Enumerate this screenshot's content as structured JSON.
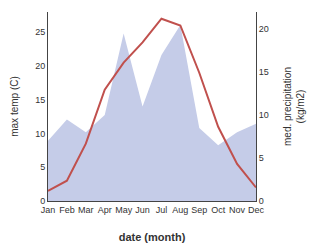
{
  "chart_data": {
    "type": "line",
    "categories": [
      "Jan",
      "Feb",
      "Mar",
      "Apr",
      "May",
      "Jun",
      "Jul",
      "Aug",
      "Sep",
      "Oct",
      "Nov",
      "Dec"
    ],
    "series": [
      {
        "type": "area",
        "axis": "y2",
        "color": "#c5cce8",
        "values": [
          7.0,
          9.5,
          8.0,
          10.0,
          19.5,
          11.0,
          17.0,
          20.5,
          8.5,
          6.5,
          8.0,
          9.0
        ]
      },
      {
        "type": "line",
        "color": "#c0504d",
        "values": [
          1.5,
          3.0,
          8.5,
          16.5,
          20.5,
          23.5,
          27.0,
          26.0,
          19.0,
          11.0,
          5.5,
          2.0
        ]
      }
    ],
    "xlabel": "date (month)",
    "ylabel": "max temp (C)",
    "y2label": "med. precipitation\n(kg/m2)",
    "ylim": [
      0,
      28
    ],
    "yticks": [
      0,
      5,
      10,
      15,
      20,
      25
    ],
    "y2lim": [
      0,
      22
    ],
    "y2ticks": [
      0,
      5,
      10,
      15,
      20
    ],
    "grid": false
  }
}
